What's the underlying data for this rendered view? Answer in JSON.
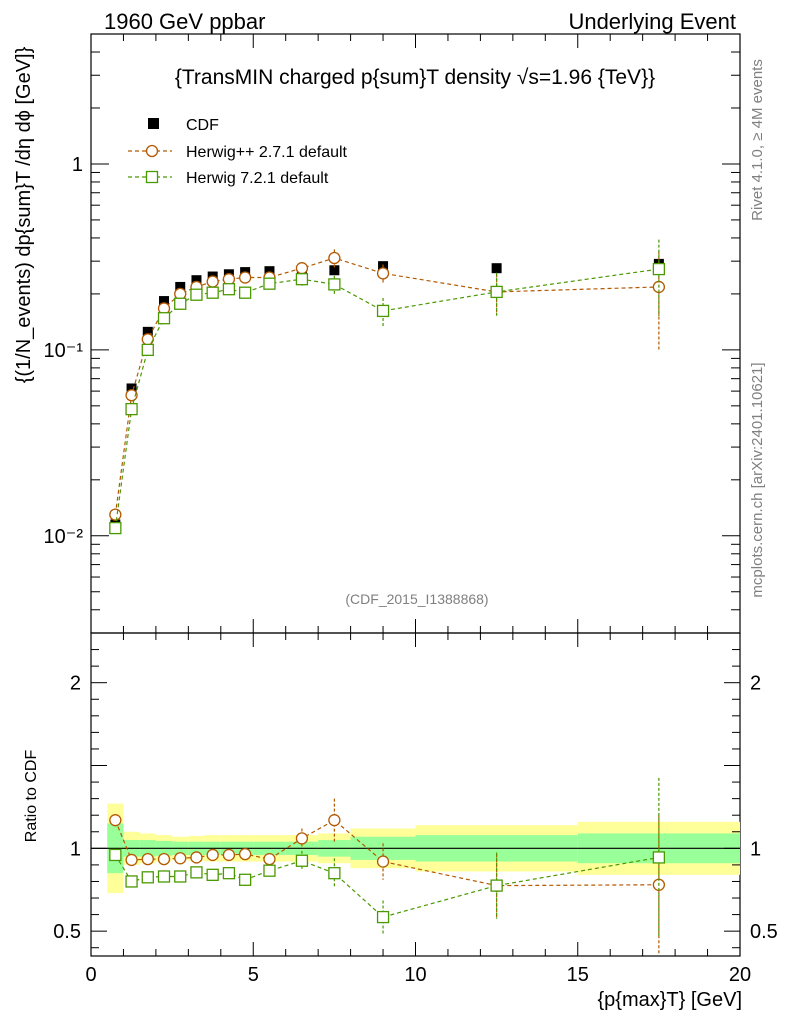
{
  "header": {
    "left": "1960 GeV ppbar",
    "right": "Underlying Event"
  },
  "side": {
    "rivet": "Rivet 4.1.0, ≥ 4M events",
    "mcplots": "mcplots.cern.ch [arXiv:2401.10621]"
  },
  "chart_data": {
    "type": "scatter",
    "title": "{TransMIN charged p{sum}T density √s=1.96 {TeV}}",
    "analysis_id": "(CDF_2015_I1388868)",
    "xlabel": "{p{max}T} [GeV]",
    "ylabel": "{(1/N_events) dp{sum}T /dη dϕ [GeV]}",
    "ratio_ylabel": "Ratio to CDF",
    "xlim": [
      0,
      20
    ],
    "ylim_log": [
      0.003,
      5
    ],
    "ratio_ylim": [
      0.35,
      2.3
    ],
    "x_ticks": [
      "0",
      "5",
      "10",
      "15",
      "20"
    ],
    "y_ticks": [
      "10⁻²",
      "10⁻¹",
      "1"
    ],
    "ratio_ticks": [
      "0.5",
      "1",
      "2"
    ],
    "x": [
      0.75,
      1.25,
      1.75,
      2.25,
      2.75,
      3.25,
      3.75,
      4.25,
      4.75,
      5.5,
      6.5,
      7.5,
      9.0,
      12.5,
      17.5
    ],
    "x_bins": [
      [
        0.5,
        1.0
      ],
      [
        1.0,
        1.5
      ],
      [
        1.5,
        2.0
      ],
      [
        2.0,
        2.5
      ],
      [
        2.5,
        3.0
      ],
      [
        3.0,
        3.5
      ],
      [
        3.5,
        4.0
      ],
      [
        4.0,
        4.5
      ],
      [
        4.5,
        5.0
      ],
      [
        5.0,
        6.0
      ],
      [
        6.0,
        7.0
      ],
      [
        7.0,
        8.0
      ],
      [
        8.0,
        10.0
      ],
      [
        10.0,
        15.0
      ],
      [
        15.0,
        20.0
      ]
    ],
    "series": [
      {
        "name": "CDF",
        "color": "#000000",
        "values": [
          0.0115,
          0.062,
          0.125,
          0.183,
          0.218,
          0.237,
          0.248,
          0.255,
          0.262,
          0.265,
          0.262,
          0.268,
          0.282,
          0.275,
          0.29
        ]
      },
      {
        "name": "Herwig++ 2.7.1 default",
        "color": "#b35900",
        "values": [
          0.013,
          0.057,
          0.114,
          0.167,
          0.2,
          0.218,
          0.233,
          0.24,
          0.245,
          0.245,
          0.275,
          0.312,
          0.258,
          0.205,
          0.218
        ],
        "errors": [
          0,
          0,
          0,
          0,
          0,
          0,
          0,
          0,
          0,
          0.006,
          0.018,
          0.035,
          0.03,
          0.05,
          0.12
        ]
      },
      {
        "name": "Herwig 7.2.1 default",
        "color": "#4a9900",
        "values": [
          0.011,
          0.048,
          0.1,
          0.148,
          0.177,
          0.198,
          0.203,
          0.212,
          0.203,
          0.227,
          0.24,
          0.225,
          0.162,
          0.205,
          0.272
        ],
        "errors": [
          0,
          0,
          0,
          0,
          0,
          0,
          0,
          0,
          0,
          0.007,
          0.02,
          0.025,
          0.028,
          0.055,
          0.12
        ]
      }
    ],
    "ratio_series": [
      {
        "name": "Herwig++ 2.7.1 default",
        "values": [
          1.17,
          0.93,
          0.935,
          0.935,
          0.94,
          0.945,
          0.96,
          0.96,
          0.965,
          0.935,
          1.06,
          1.17,
          0.92,
          0.775,
          0.78
        ],
        "errors": [
          0,
          0,
          0,
          0,
          0,
          0,
          0,
          0,
          0,
          0.02,
          0.06,
          0.13,
          0.11,
          0.19,
          0.42
        ]
      },
      {
        "name": "Herwig 7.2.1 default",
        "values": [
          0.96,
          0.8,
          0.825,
          0.83,
          0.83,
          0.855,
          0.84,
          0.85,
          0.81,
          0.865,
          0.925,
          0.85,
          0.585,
          0.775,
          0.945
        ],
        "errors": [
          0,
          0,
          0,
          0,
          0,
          0,
          0,
          0,
          0,
          0.02,
          0.06,
          0.09,
          0.1,
          0.2,
          0.48
        ]
      }
    ],
    "ratio_band_inner": [
      0.15,
      0.05,
      0.05,
      0.045,
      0.04,
      0.04,
      0.04,
      0.04,
      0.04,
      0.04,
      0.04,
      0.05,
      0.07,
      0.08,
      0.09
    ],
    "ratio_band_outer": [
      0.27,
      0.1,
      0.09,
      0.08,
      0.07,
      0.075,
      0.08,
      0.08,
      0.08,
      0.08,
      0.08,
      0.09,
      0.12,
      0.14,
      0.16
    ]
  }
}
